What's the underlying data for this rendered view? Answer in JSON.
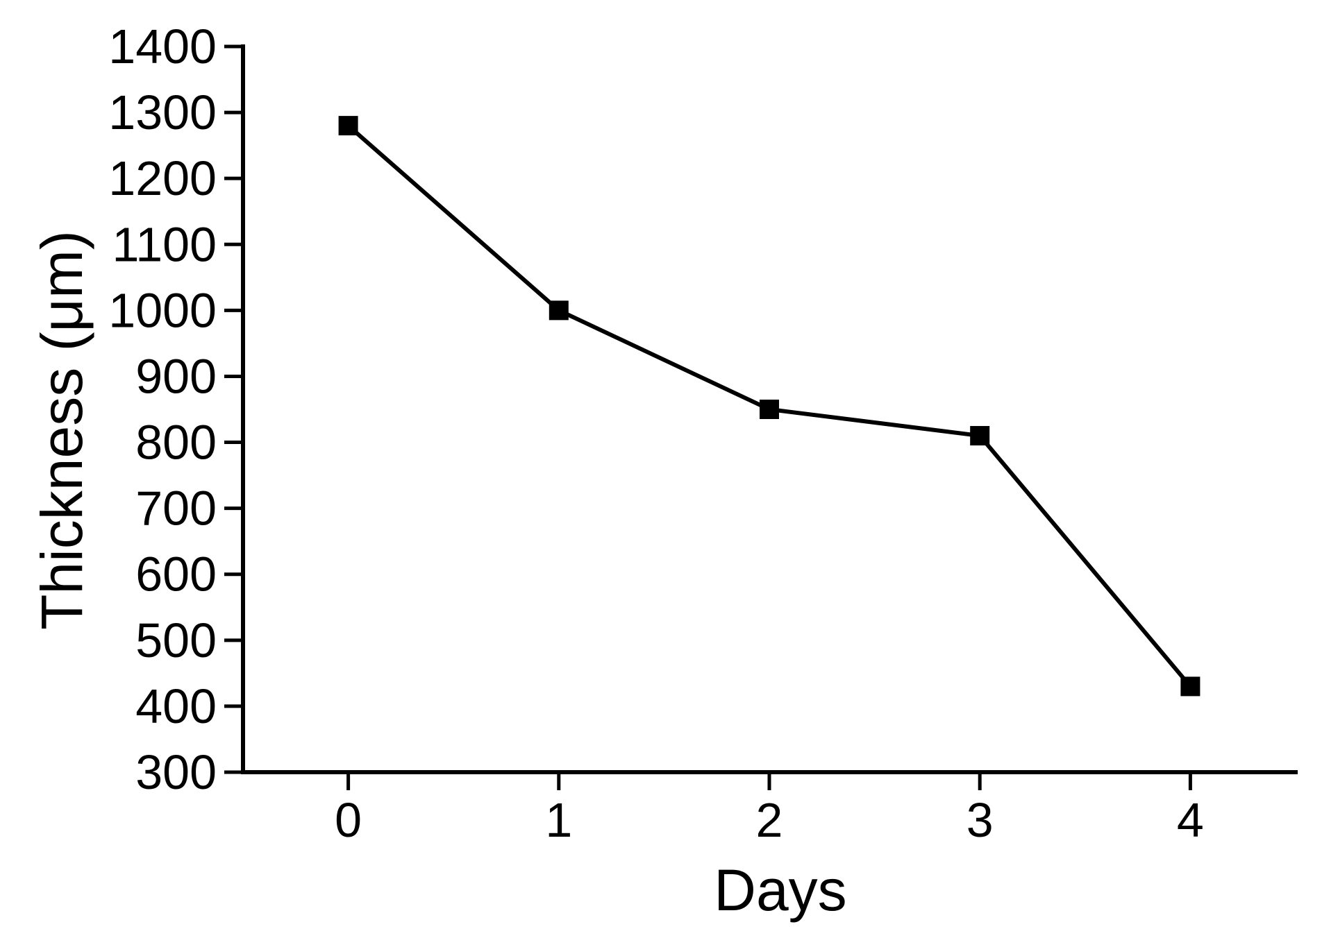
{
  "chart_data": {
    "type": "line",
    "title": "",
    "xlabel": "Days",
    "ylabel": "Thickness (μm)",
    "x": [
      0,
      1,
      2,
      3,
      4
    ],
    "series": [
      {
        "name": "Thickness",
        "values": [
          1280,
          1000,
          850,
          810,
          430
        ]
      }
    ],
    "xticks": [
      0,
      1,
      2,
      3,
      4
    ],
    "yticks": [
      300,
      400,
      500,
      600,
      700,
      800,
      900,
      1000,
      1100,
      1200,
      1300,
      1400
    ],
    "xlim": [
      -0.5,
      4.5
    ],
    "ylim": [
      300,
      1400
    ],
    "grid": false,
    "legend": "none",
    "marker": "filled-square",
    "line_color": "#000000",
    "marker_color": "#000000",
    "axis_color": "#000000",
    "text_color": "#000000",
    "background_color": "#ffffff"
  }
}
